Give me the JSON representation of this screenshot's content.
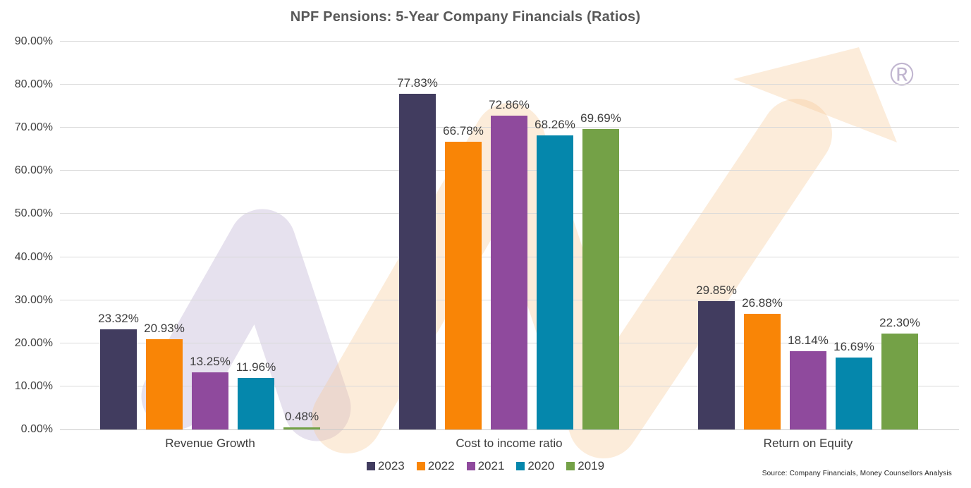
{
  "title": "NPF Pensions: 5-Year Company Financials (Ratios)",
  "source_note": "Source: Company Financials, Money Counsellors Analysis",
  "watermark": {
    "name": "money-counsellors-logo-watermark",
    "registered_mark": "®",
    "chevron_color": "#b7a8cf",
    "arrow_color": "#f7c896"
  },
  "chart_data": {
    "type": "bar",
    "title": "NPF Pensions: 5-Year Company Financials (Ratios)",
    "categories": [
      "Revenue Growth",
      "Cost to income ratio",
      "Return on Equity"
    ],
    "series": [
      {
        "name": "2023",
        "color": "#413c5f",
        "values": [
          23.32,
          77.83,
          29.85
        ]
      },
      {
        "name": "2022",
        "color": "#f98506",
        "values": [
          20.93,
          66.78,
          26.88
        ]
      },
      {
        "name": "2021",
        "color": "#8f4a9d",
        "values": [
          13.25,
          72.86,
          18.14
        ]
      },
      {
        "name": "2020",
        "color": "#0587ac",
        "values": [
          11.96,
          68.26,
          16.69
        ]
      },
      {
        "name": "2019",
        "color": "#74a147",
        "values": [
          0.48,
          69.69,
          22.3
        ]
      }
    ],
    "ylim": [
      0,
      90
    ],
    "y_tick_labels": [
      "0.00%",
      "10.00%",
      "20.00%",
      "30.00%",
      "40.00%",
      "50.00%",
      "60.00%",
      "70.00%",
      "80.00%",
      "90.00%"
    ],
    "value_suffix": "%",
    "value_decimals": 2,
    "grid": true,
    "data_labels_shown": true,
    "legend_position": "bottom"
  }
}
